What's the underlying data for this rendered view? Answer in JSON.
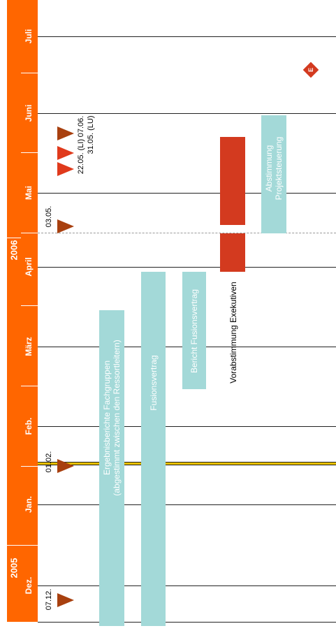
{
  "timeline": {
    "years": [
      {
        "id": "2005",
        "label": "2005"
      },
      {
        "id": "2006",
        "label": "2006"
      }
    ],
    "months": [
      {
        "id": "dez",
        "label": "Dez."
      },
      {
        "id": "jan",
        "label": "Jan."
      },
      {
        "id": "feb",
        "label": "Feb."
      },
      {
        "id": "maerz",
        "label": "März"
      },
      {
        "id": "april",
        "label": "April"
      },
      {
        "id": "mai",
        "label": "Mai"
      },
      {
        "id": "juni",
        "label": "Juni"
      },
      {
        "id": "juli",
        "label": "Juli"
      }
    ]
  },
  "bars": {
    "ergebnisberichte": {
      "line1": "Ergebnisberichte Fachgruppen",
      "line2": "(abgestimmt zwischen den Ressortleitern)",
      "color": "#a3d9d8"
    },
    "fusionsvertrag": {
      "label": "Fusionsvertrag",
      "color": "#a3d9d8"
    },
    "bericht": {
      "label": "Bericht Fusionsvertrag",
      "color": "#a3d9d8"
    },
    "vorabstimmung": {
      "label": "Vorabstimmung Exekutiven",
      "color": "#d33a1f"
    },
    "abstimmung": {
      "line1": "Abstimmung",
      "line2": "Projektsteuerung",
      "color": "#a3d9d8"
    }
  },
  "milestones": {
    "d0712": {
      "label": "07.12."
    },
    "d0102": {
      "label": "01.02."
    },
    "d0305": {
      "label": "03.05."
    },
    "d2205": {
      "label": "22.05. (LI)"
    },
    "d3105": {
      "label": "31.05. (LU)"
    },
    "d0706": {
      "label": "07.06."
    },
    "end": {
      "label": "E"
    }
  },
  "colors": {
    "accent": "#ff6600",
    "teal": "#a3d9d8",
    "red": "#d33a1f",
    "milestone": "#a8400f",
    "milestone_bright": "#e03a1c",
    "marker_yellow": "#e8c000"
  }
}
